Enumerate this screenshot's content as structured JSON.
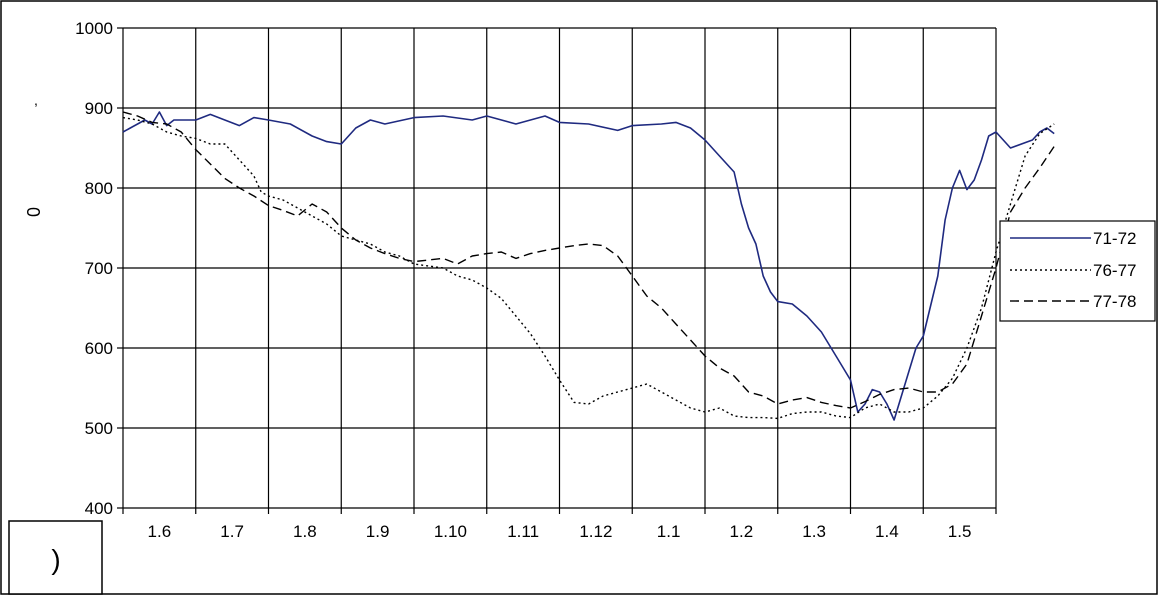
{
  "chart_data": {
    "type": "line",
    "title": "",
    "xlabel": "",
    "ylabel": "0",
    "ylim": [
      400,
      1000
    ],
    "y_ticks": [
      400,
      500,
      600,
      700,
      800,
      900,
      1000
    ],
    "grid": true,
    "legend_position": "right",
    "x_tick_labels": [
      "1.6",
      "1.7",
      "1.8",
      "1.9",
      "1.10",
      "1.11",
      "1.12",
      "1.1",
      "1.2",
      "1.3",
      "1.4",
      "1.5"
    ],
    "x": [
      1,
      2,
      3,
      4,
      5,
      6,
      7,
      8,
      9,
      10,
      11,
      12,
      13
    ],
    "series": [
      {
        "name": "71-72",
        "color": "#1f2a80",
        "dash": "solid",
        "values": [
          [
            1.0,
            870
          ],
          [
            1.1,
            875
          ],
          [
            1.2,
            880
          ],
          [
            1.3,
            885
          ],
          [
            1.4,
            880
          ],
          [
            1.5,
            895
          ],
          [
            1.6,
            878
          ],
          [
            1.7,
            885
          ],
          [
            2.0,
            885
          ],
          [
            2.2,
            892
          ],
          [
            2.4,
            885
          ],
          [
            2.6,
            878
          ],
          [
            2.8,
            888
          ],
          [
            3.0,
            885
          ],
          [
            3.3,
            880
          ],
          [
            3.6,
            865
          ],
          [
            3.8,
            858
          ],
          [
            4.0,
            855
          ],
          [
            4.2,
            875
          ],
          [
            4.4,
            885
          ],
          [
            4.6,
            880
          ],
          [
            5.0,
            888
          ],
          [
            5.4,
            890
          ],
          [
            5.8,
            885
          ],
          [
            6.0,
            890
          ],
          [
            6.4,
            880
          ],
          [
            6.8,
            890
          ],
          [
            7.0,
            882
          ],
          [
            7.4,
            880
          ],
          [
            7.8,
            872
          ],
          [
            8.0,
            878
          ],
          [
            8.4,
            880
          ],
          [
            8.6,
            882
          ],
          [
            8.8,
            875
          ],
          [
            9.0,
            860
          ],
          [
            9.2,
            840
          ],
          [
            9.4,
            820
          ],
          [
            9.5,
            780
          ],
          [
            9.6,
            750
          ],
          [
            9.7,
            730
          ],
          [
            9.8,
            690
          ],
          [
            9.9,
            670
          ],
          [
            10.0,
            658
          ],
          [
            10.2,
            655
          ],
          [
            10.4,
            640
          ],
          [
            10.6,
            620
          ],
          [
            10.8,
            590
          ],
          [
            11.0,
            560
          ],
          [
            11.1,
            520
          ],
          [
            11.2,
            530
          ],
          [
            11.3,
            548
          ],
          [
            11.4,
            545
          ],
          [
            11.5,
            530
          ],
          [
            11.6,
            510
          ],
          [
            11.7,
            540
          ],
          [
            11.8,
            570
          ],
          [
            11.9,
            600
          ],
          [
            12.0,
            615
          ],
          [
            12.2,
            690
          ],
          [
            12.3,
            760
          ],
          [
            12.4,
            800
          ],
          [
            12.5,
            822
          ],
          [
            12.6,
            798
          ],
          [
            12.7,
            810
          ],
          [
            12.8,
            835
          ],
          [
            12.9,
            865
          ],
          [
            13.0,
            870
          ],
          [
            13.2,
            850
          ],
          [
            13.5,
            860
          ],
          [
            13.6,
            870
          ],
          [
            13.7,
            875
          ],
          [
            13.8,
            868
          ]
        ]
      },
      {
        "name": "76-77",
        "color": "#000000",
        "dash": "2,3",
        "values": [
          [
            1.0,
            888
          ],
          [
            1.2,
            885
          ],
          [
            1.4,
            880
          ],
          [
            1.6,
            870
          ],
          [
            1.8,
            865
          ],
          [
            2.0,
            862
          ],
          [
            2.2,
            855
          ],
          [
            2.4,
            855
          ],
          [
            2.6,
            835
          ],
          [
            2.8,
            815
          ],
          [
            2.9,
            795
          ],
          [
            3.0,
            790
          ],
          [
            3.2,
            785
          ],
          [
            3.4,
            775
          ],
          [
            3.6,
            765
          ],
          [
            3.8,
            755
          ],
          [
            4.0,
            740
          ],
          [
            4.2,
            735
          ],
          [
            4.4,
            730
          ],
          [
            4.6,
            720
          ],
          [
            4.8,
            715
          ],
          [
            5.0,
            705
          ],
          [
            5.4,
            700
          ],
          [
            5.6,
            690
          ],
          [
            5.8,
            685
          ],
          [
            6.0,
            675
          ],
          [
            6.2,
            662
          ],
          [
            6.4,
            640
          ],
          [
            6.6,
            618
          ],
          [
            6.8,
            590
          ],
          [
            7.0,
            560
          ],
          [
            7.2,
            532
          ],
          [
            7.4,
            530
          ],
          [
            7.6,
            540
          ],
          [
            7.8,
            545
          ],
          [
            8.0,
            550
          ],
          [
            8.2,
            555
          ],
          [
            8.4,
            545
          ],
          [
            8.6,
            535
          ],
          [
            8.8,
            525
          ],
          [
            9.0,
            520
          ],
          [
            9.2,
            525
          ],
          [
            9.4,
            515
          ],
          [
            9.6,
            513
          ],
          [
            9.8,
            513
          ],
          [
            10.0,
            512
          ],
          [
            10.2,
            518
          ],
          [
            10.4,
            520
          ],
          [
            10.6,
            520
          ],
          [
            10.8,
            515
          ],
          [
            11.0,
            513
          ],
          [
            11.2,
            525
          ],
          [
            11.4,
            530
          ],
          [
            11.6,
            520
          ],
          [
            11.8,
            520
          ],
          [
            12.0,
            525
          ],
          [
            12.2,
            540
          ],
          [
            12.4,
            562
          ],
          [
            12.6,
            600
          ],
          [
            12.8,
            650
          ],
          [
            13.0,
            720
          ],
          [
            13.2,
            780
          ],
          [
            13.4,
            840
          ],
          [
            13.6,
            868
          ],
          [
            13.8,
            880
          ]
        ]
      },
      {
        "name": "77-78",
        "color": "#000000",
        "dash": "9,5",
        "values": [
          [
            1.0,
            895
          ],
          [
            1.2,
            890
          ],
          [
            1.4,
            882
          ],
          [
            1.6,
            880
          ],
          [
            1.8,
            870
          ],
          [
            2.0,
            848
          ],
          [
            2.2,
            830
          ],
          [
            2.4,
            812
          ],
          [
            2.6,
            800
          ],
          [
            2.8,
            790
          ],
          [
            3.0,
            778
          ],
          [
            3.2,
            772
          ],
          [
            3.4,
            765
          ],
          [
            3.6,
            780
          ],
          [
            3.8,
            770
          ],
          [
            4.0,
            750
          ],
          [
            4.2,
            735
          ],
          [
            4.4,
            725
          ],
          [
            4.6,
            718
          ],
          [
            4.8,
            712
          ],
          [
            5.0,
            708
          ],
          [
            5.2,
            710
          ],
          [
            5.4,
            712
          ],
          [
            5.6,
            705
          ],
          [
            5.8,
            715
          ],
          [
            6.0,
            718
          ],
          [
            6.2,
            720
          ],
          [
            6.4,
            712
          ],
          [
            6.6,
            718
          ],
          [
            6.8,
            722
          ],
          [
            7.0,
            725
          ],
          [
            7.2,
            728
          ],
          [
            7.4,
            730
          ],
          [
            7.6,
            728
          ],
          [
            7.8,
            715
          ],
          [
            8.0,
            690
          ],
          [
            8.2,
            665
          ],
          [
            8.4,
            650
          ],
          [
            8.6,
            630
          ],
          [
            8.8,
            610
          ],
          [
            9.0,
            590
          ],
          [
            9.2,
            575
          ],
          [
            9.4,
            565
          ],
          [
            9.6,
            545
          ],
          [
            9.8,
            540
          ],
          [
            10.0,
            530
          ],
          [
            10.2,
            535
          ],
          [
            10.4,
            538
          ],
          [
            10.6,
            532
          ],
          [
            10.8,
            528
          ],
          [
            11.0,
            525
          ],
          [
            11.2,
            533
          ],
          [
            11.4,
            542
          ],
          [
            11.6,
            548
          ],
          [
            11.8,
            550
          ],
          [
            12.0,
            545
          ],
          [
            12.2,
            545
          ],
          [
            12.4,
            555
          ],
          [
            12.6,
            580
          ],
          [
            12.8,
            640
          ],
          [
            13.0,
            700
          ],
          [
            13.2,
            770
          ],
          [
            13.4,
            800
          ],
          [
            13.6,
            825
          ],
          [
            13.8,
            852
          ]
        ]
      }
    ]
  },
  "corner_box_text": ")",
  "left_mark": ","
}
